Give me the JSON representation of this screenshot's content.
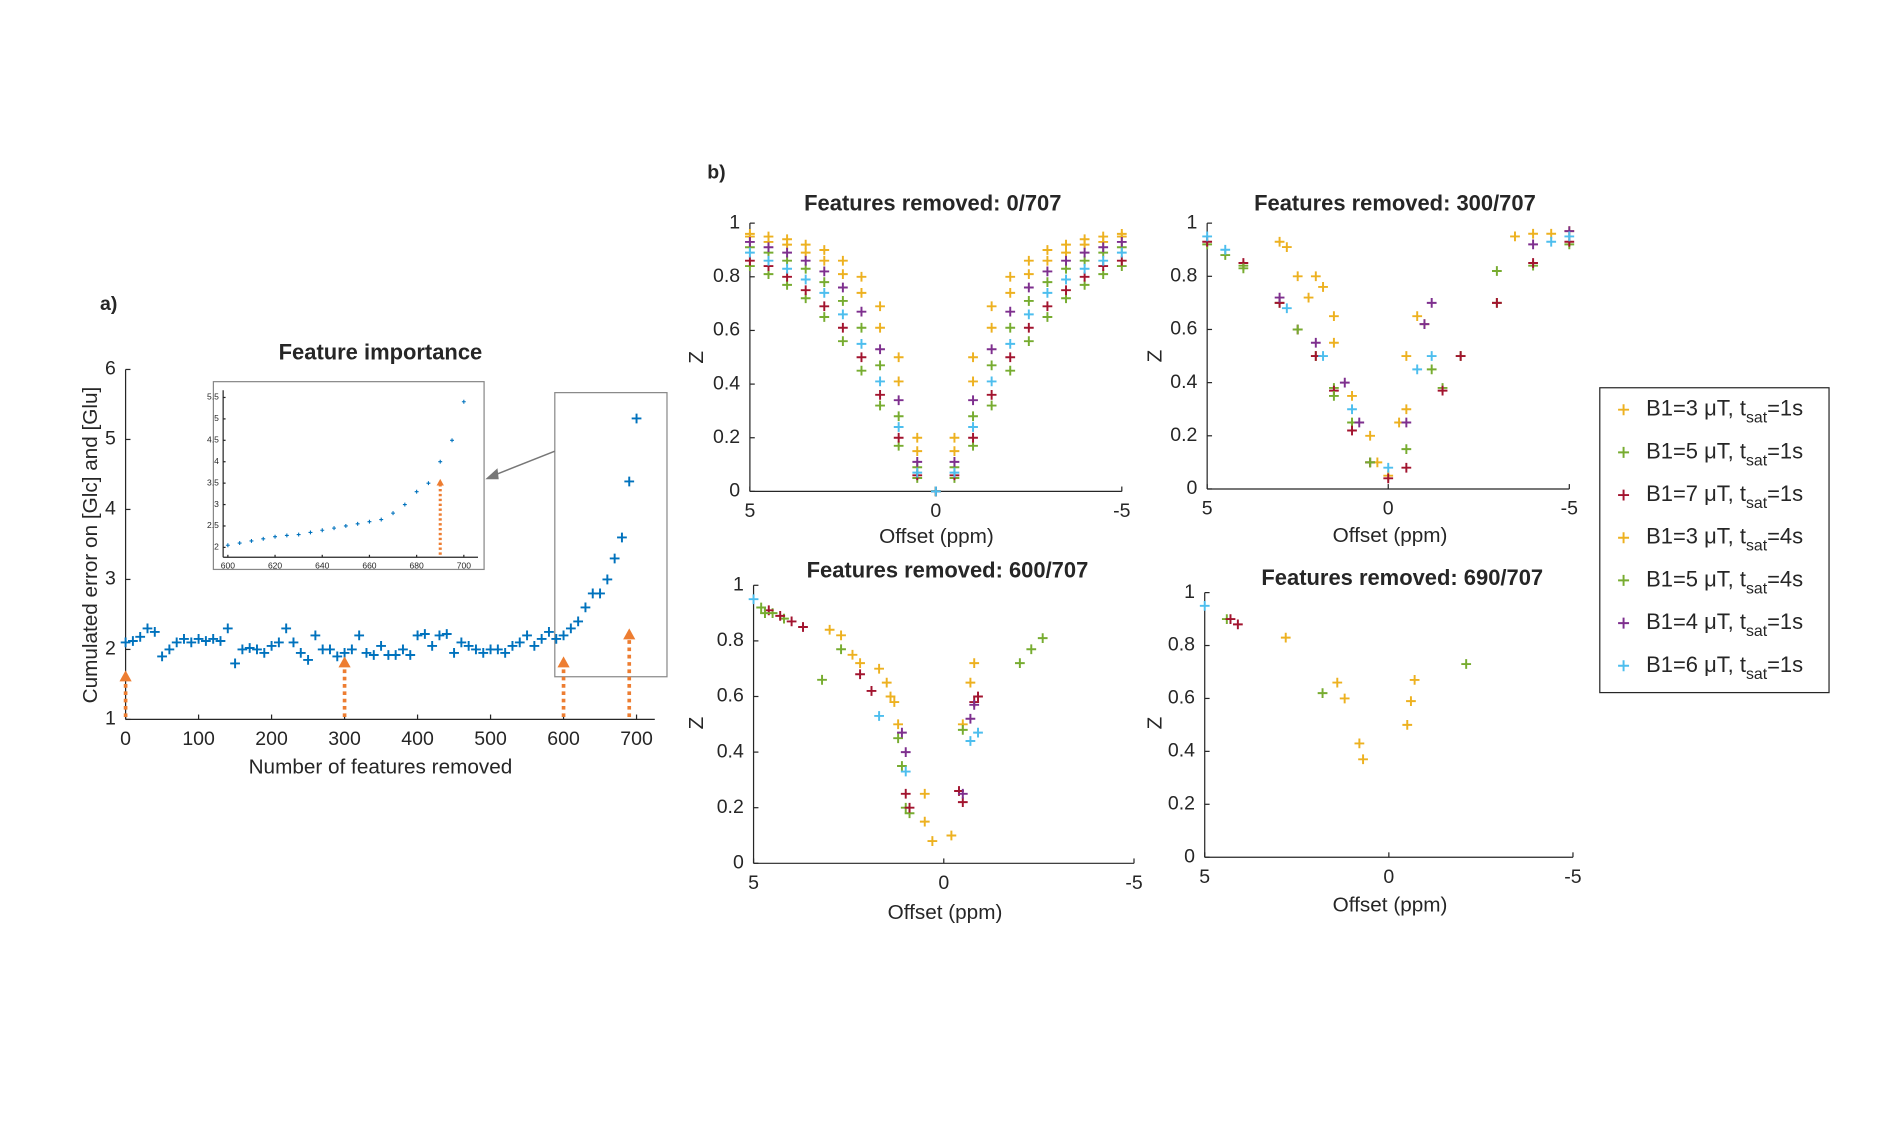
{
  "chart_data": [
    {
      "type": "scatter",
      "panel_label": "a)",
      "title": "Feature importance",
      "xlabel": "Number of features removed",
      "ylabel": "Cumulated error on [Glc] and [Glu]",
      "xlim": [
        0,
        725
      ],
      "ylim": [
        1,
        6
      ],
      "xticks": [
        0,
        100,
        200,
        300,
        400,
        500,
        600,
        700
      ],
      "yticks": [
        1,
        2,
        3,
        4,
        5,
        6
      ],
      "series": [
        {
          "color": "#0072BD",
          "x": [
            0,
            10,
            20,
            30,
            40,
            50,
            60,
            70,
            80,
            90,
            100,
            110,
            120,
            130,
            140,
            150,
            160,
            170,
            180,
            190,
            200,
            210,
            220,
            230,
            240,
            250,
            260,
            270,
            280,
            290,
            300,
            310,
            320,
            330,
            340,
            350,
            360,
            370,
            380,
            390,
            400,
            410,
            420,
            430,
            440,
            450,
            460,
            470,
            480,
            490,
            500,
            510,
            520,
            530,
            540,
            550,
            560,
            570,
            580,
            590,
            600,
            610,
            620,
            630,
            640,
            650,
            660,
            670,
            680,
            690,
            700
          ],
          "values": [
            2.1,
            2.12,
            2.18,
            2.3,
            2.25,
            1.9,
            2.0,
            2.1,
            2.15,
            2.1,
            2.15,
            2.12,
            2.15,
            2.12,
            2.3,
            1.8,
            2.0,
            2.02,
            2.0,
            1.95,
            2.05,
            2.1,
            2.3,
            2.1,
            1.95,
            1.85,
            2.2,
            2.0,
            2.0,
            1.9,
            1.95,
            2.0,
            2.2,
            1.95,
            1.92,
            2.05,
            1.92,
            1.92,
            2.0,
            1.92,
            2.2,
            2.22,
            2.05,
            2.2,
            2.22,
            1.95,
            2.1,
            2.05,
            2.0,
            1.95,
            2.0,
            2.0,
            1.95,
            2.05,
            2.1,
            2.2,
            2.05,
            2.15,
            2.25,
            2.15,
            2.2,
            2.3,
            2.4,
            2.6,
            2.8,
            2.8,
            3.0,
            3.3,
            3.6,
            4.4,
            5.3
          ]
        }
      ],
      "arrows": [
        {
          "x": 0,
          "y": 1.7
        },
        {
          "x": 300,
          "y": 1.9
        },
        {
          "x": 600,
          "y": 1.9
        },
        {
          "x": 690,
          "y": 2.3
        }
      ]
    },
    {
      "type": "scatter",
      "xlim": [
        598,
        706
      ],
      "ylim": [
        1.77,
        5.67
      ],
      "xticks": [
        600,
        620,
        640,
        660,
        680,
        700
      ],
      "yticks": [
        2,
        2.5,
        3,
        3.5,
        4,
        4.5,
        5,
        5.5
      ],
      "series": [
        {
          "color": "#0072BD",
          "x": [
            600,
            605,
            610,
            615,
            620,
            625,
            630,
            635,
            640,
            645,
            650,
            655,
            660,
            665,
            670,
            675,
            680,
            685,
            690,
            695,
            700
          ],
          "values": [
            2.05,
            2.1,
            2.15,
            2.2,
            2.25,
            2.28,
            2.3,
            2.35,
            2.4,
            2.45,
            2.5,
            2.55,
            2.6,
            2.65,
            2.8,
            3.0,
            3.3,
            3.5,
            4.0,
            4.5,
            5.4
          ]
        }
      ],
      "arrows": [
        {
          "x": 690,
          "y": 3.6
        }
      ]
    },
    {
      "type": "scatter",
      "panel_label": "b)",
      "title": "Features removed: 0/707",
      "xlabel": "Offset (ppm)",
      "ylabel": "Z",
      "xlim": [
        5,
        -5
      ],
      "ylim": [
        0,
        1
      ],
      "xticks": [
        5,
        0,
        -5
      ],
      "yticks": [
        0,
        0.2,
        0.4,
        0.6,
        0.8,
        1
      ],
      "x": [
        5,
        4.5,
        4,
        3.5,
        3,
        2.5,
        2,
        1.5,
        1,
        0.5,
        0,
        -0.5,
        -1,
        -1.5,
        -2,
        -2.5,
        -3,
        -3.5,
        -4,
        -4.5,
        -5
      ],
      "series": [
        {
          "color": "#EDB120",
          "values": [
            0.96,
            0.95,
            0.94,
            0.92,
            0.9,
            0.86,
            0.8,
            0.69,
            0.5,
            0.2,
            0,
            0.2,
            0.5,
            0.69,
            0.8,
            0.86,
            0.9,
            0.92,
            0.94,
            0.95,
            0.96
          ]
        },
        {
          "color": "#77AC30",
          "values": [
            0.84,
            0.81,
            0.77,
            0.72,
            0.65,
            0.56,
            0.45,
            0.32,
            0.17,
            0.05,
            0,
            0.05,
            0.17,
            0.32,
            0.45,
            0.56,
            0.65,
            0.72,
            0.77,
            0.81,
            0.84
          ]
        },
        {
          "color": "#A2142F",
          "values": [
            0.86,
            0.84,
            0.8,
            0.75,
            0.69,
            0.61,
            0.5,
            0.36,
            0.2,
            0.06,
            0,
            0.06,
            0.2,
            0.36,
            0.5,
            0.61,
            0.69,
            0.75,
            0.8,
            0.84,
            0.86
          ]
        },
        {
          "color": "#EDB120",
          "values": [
            0.95,
            0.93,
            0.92,
            0.89,
            0.86,
            0.81,
            0.74,
            0.61,
            0.41,
            0.15,
            0,
            0.15,
            0.41,
            0.61,
            0.74,
            0.81,
            0.86,
            0.89,
            0.92,
            0.93,
            0.95
          ]
        },
        {
          "color": "#77AC30",
          "values": [
            0.91,
            0.89,
            0.86,
            0.83,
            0.78,
            0.71,
            0.61,
            0.47,
            0.28,
            0.09,
            0,
            0.09,
            0.28,
            0.47,
            0.61,
            0.71,
            0.78,
            0.83,
            0.86,
            0.89,
            0.91
          ]
        },
        {
          "color": "#7E2F8E",
          "values": [
            0.93,
            0.91,
            0.89,
            0.86,
            0.82,
            0.76,
            0.67,
            0.53,
            0.34,
            0.11,
            0,
            0.11,
            0.34,
            0.53,
            0.67,
            0.76,
            0.82,
            0.86,
            0.89,
            0.91,
            0.93
          ]
        },
        {
          "color": "#4DBEEE",
          "values": [
            0.89,
            0.86,
            0.83,
            0.79,
            0.74,
            0.66,
            0.55,
            0.41,
            0.24,
            0.07,
            0,
            0.07,
            0.24,
            0.41,
            0.55,
            0.66,
            0.74,
            0.79,
            0.83,
            0.86,
            0.89
          ]
        }
      ]
    },
    {
      "type": "scatter",
      "title": "Features removed: 300/707",
      "xlabel": "Offset (ppm)",
      "ylabel": "Z",
      "xlim": [
        5,
        -5
      ],
      "ylim": [
        0,
        1
      ],
      "xticks": [
        5,
        0,
        -5
      ],
      "yticks": [
        0,
        0.2,
        0.4,
        0.6,
        0.8,
        1
      ],
      "series": [
        {
          "color": "#EDB120",
          "x": [
            3,
            2.8,
            2,
            1.8,
            1.5,
            0.5,
            0.3,
            0,
            -0.5,
            -1,
            -3.5,
            -4,
            -5
          ],
          "values": [
            0.93,
            0.91,
            0.8,
            0.76,
            0.65,
            0.2,
            0.1,
            0.05,
            0.3,
            0.62,
            0.95,
            0.96,
            0.97
          ]
        },
        {
          "color": "#77AC30",
          "x": [
            5,
            4.5,
            4,
            3,
            2,
            1.5,
            1,
            0.5,
            -1.5,
            -2,
            -3,
            -4,
            -5
          ],
          "values": [
            0.92,
            0.88,
            0.84,
            0.7,
            0.5,
            0.38,
            0.25,
            0.1,
            0.38,
            0.5,
            0.7,
            0.84,
            0.92
          ]
        },
        {
          "color": "#A2142F",
          "x": [
            5,
            4,
            3,
            2.5,
            2,
            1.5,
            1,
            0.5,
            0,
            -0.5,
            -1.5,
            -2,
            -3,
            -4,
            -5
          ],
          "values": [
            0.93,
            0.85,
            0.7,
            0.6,
            0.5,
            0.37,
            0.22,
            0.1,
            0.04,
            0.08,
            0.37,
            0.5,
            0.7,
            0.85,
            0.93
          ]
        },
        {
          "color": "#EDB120",
          "x": [
            2.5,
            2.2,
            1.5,
            1,
            -0.3,
            -0.5,
            -0.8,
            -4.5
          ],
          "values": [
            0.8,
            0.72,
            0.55,
            0.35,
            0.25,
            0.5,
            0.65,
            0.96
          ]
        },
        {
          "color": "#77AC30",
          "x": [
            4,
            2.5,
            1.5,
            0.5,
            -0.5,
            -1.2,
            -3
          ],
          "values": [
            0.83,
            0.6,
            0.35,
            0.1,
            0.15,
            0.45,
            0.82
          ]
        },
        {
          "color": "#7E2F8E",
          "x": [
            3,
            2,
            1.2,
            0.8,
            -0.5,
            -1,
            -1.2,
            -4,
            -5
          ],
          "values": [
            0.72,
            0.55,
            0.4,
            0.25,
            0.25,
            0.62,
            0.7,
            0.92,
            0.97
          ]
        },
        {
          "color": "#4DBEEE",
          "x": [
            5,
            4.5,
            2.8,
            1.8,
            1,
            0,
            -0.8,
            -1.2,
            -4.5,
            -5
          ],
          "values": [
            0.95,
            0.9,
            0.68,
            0.5,
            0.3,
            0.08,
            0.45,
            0.5,
            0.93,
            0.95
          ]
        }
      ]
    },
    {
      "type": "scatter",
      "title": "Features removed: 600/707",
      "xlabel": "Offset (ppm)",
      "ylabel": "Z",
      "xlim": [
        5,
        -5
      ],
      "ylim": [
        0,
        1
      ],
      "xticks": [
        5,
        0,
        -5
      ],
      "yticks": [
        0,
        0.2,
        0.4,
        0.6,
        0.8,
        1
      ],
      "series": [
        {
          "color": "#EDB120",
          "x": [
            3,
            2.7,
            2.4,
            2.2,
            1.5,
            1.3,
            0.5,
            0.3,
            -0.2,
            -0.5,
            -0.7,
            -0.8
          ],
          "values": [
            0.84,
            0.82,
            0.75,
            0.72,
            0.65,
            0.58,
            0.25,
            0.08,
            0.1,
            0.5,
            0.65,
            0.72
          ]
        },
        {
          "color": "#77AC30",
          "x": [
            4.8,
            4.5,
            4.2,
            2.7,
            1,
            0.9,
            -2,
            -2.3,
            -2.6
          ],
          "values": [
            0.92,
            0.9,
            0.88,
            0.77,
            0.2,
            0.18,
            0.72,
            0.77,
            0.81
          ]
        },
        {
          "color": "#A2142F",
          "x": [
            4.6,
            4.3,
            4,
            3.7,
            2.2,
            1.9,
            1,
            0.9,
            -0.4,
            -0.5,
            -0.8,
            -0.9
          ],
          "values": [
            0.91,
            0.89,
            0.87,
            0.85,
            0.68,
            0.62,
            0.25,
            0.2,
            0.26,
            0.22,
            0.58,
            0.6
          ]
        },
        {
          "color": "#EDB120",
          "x": [
            1.7,
            1.4,
            1.2,
            0.5
          ],
          "values": [
            0.7,
            0.6,
            0.5,
            0.15
          ]
        },
        {
          "color": "#77AC30",
          "x": [
            4.7,
            3.2,
            1.2,
            1.1,
            -0.5
          ],
          "values": [
            0.9,
            0.66,
            0.45,
            0.35,
            0.48
          ]
        },
        {
          "color": "#7E2F8E",
          "x": [
            1.1,
            1,
            -0.5,
            -0.7,
            -0.8
          ],
          "values": [
            0.47,
            0.4,
            0.25,
            0.52,
            0.57
          ]
        },
        {
          "color": "#4DBEEE",
          "x": [
            5,
            1.7,
            1,
            -0.7,
            -0.9
          ],
          "values": [
            0.95,
            0.53,
            0.33,
            0.44,
            0.47
          ]
        }
      ]
    },
    {
      "type": "scatter",
      "title": "Features removed: 690/707",
      "xlabel": "Offset (ppm)",
      "ylabel": "Z",
      "xlim": [
        5,
        -5
      ],
      "ylim": [
        0,
        1
      ],
      "xticks": [
        5,
        0,
        -5
      ],
      "yticks": [
        0,
        0.2,
        0.4,
        0.6,
        0.8,
        1
      ],
      "legend": "outside-right",
      "series": [
        {
          "name": [
            "B1=3 μT, t",
            "sat",
            "=1s"
          ],
          "color": "#EDB120",
          "x": [
            2.8,
            1.4,
            1.2,
            0.8,
            0.7,
            -0.5,
            -0.6,
            -0.7
          ],
          "values": [
            0.83,
            0.66,
            0.6,
            0.43,
            0.37,
            0.5,
            0.59,
            0.67
          ]
        },
        {
          "name": [
            "B1=5 μT, t",
            "sat",
            "=1s"
          ],
          "color": "#77AC30",
          "x": [
            4.4,
            -2.1
          ],
          "values": [
            0.9,
            0.73
          ]
        },
        {
          "name": [
            "B1=7 μT, t",
            "sat",
            "=1s"
          ],
          "color": "#A2142F",
          "x": [
            4.3,
            4.1
          ],
          "values": [
            0.9,
            0.88
          ]
        },
        {
          "name": [
            "B1=3 μT, t",
            "sat",
            "=4s"
          ],
          "color": "#EDB120",
          "x": [],
          "values": []
        },
        {
          "name": [
            "B1=5 μT, t",
            "sat",
            "=4s"
          ],
          "color": "#77AC30",
          "x": [
            1.8
          ],
          "values": [
            0.62
          ]
        },
        {
          "name": [
            "B1=4 μT, t",
            "sat",
            "=1s"
          ],
          "color": "#7E2F8E",
          "x": [],
          "values": []
        },
        {
          "name": [
            "B1=6 μT, t",
            "sat",
            "=1s"
          ],
          "color": "#4DBEEE",
          "x": [
            5
          ],
          "values": [
            0.95
          ]
        }
      ]
    }
  ]
}
